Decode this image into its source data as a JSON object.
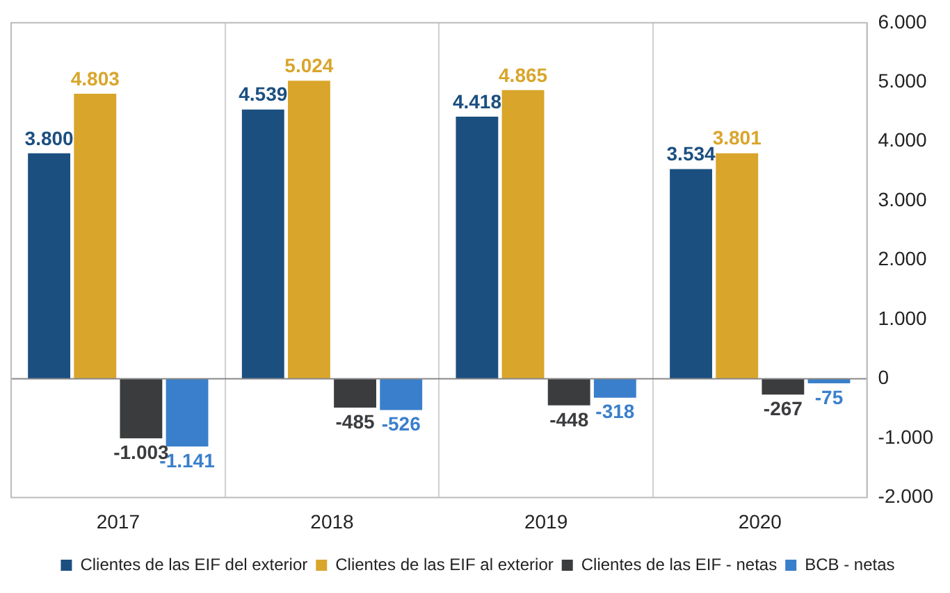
{
  "chart_data": {
    "type": "bar",
    "categories": [
      "2017",
      "2018",
      "2019",
      "2020"
    ],
    "series": [
      {
        "name": "Clientes de las EIF del exterior",
        "color": "#1b4f80",
        "values": [
          3800,
          4539,
          4418,
          3534
        ],
        "value_labels": [
          "3.800",
          "4.539",
          "4.418",
          "3.534"
        ]
      },
      {
        "name": "Clientes de las EIF al exterior",
        "color": "#d9a52b",
        "values": [
          4803,
          5024,
          4865,
          3801
        ],
        "value_labels": [
          "4.803",
          "5.024",
          "4.865",
          "3.801"
        ]
      },
      {
        "name": "Clientes de las EIF - netas",
        "color": "#3b3c3e",
        "values": [
          -1003,
          -485,
          -448,
          -267
        ],
        "value_labels": [
          "-1.003",
          "-485",
          "-448",
          "-267"
        ]
      },
      {
        "name": "BCB - netas",
        "color": "#3a7fcb",
        "values": [
          -1141,
          -526,
          -318,
          -75
        ],
        "value_labels": [
          "-1.141",
          "-526",
          "-318",
          "-75"
        ]
      }
    ],
    "ylim": [
      -2000,
      6000
    ],
    "yticks": [
      {
        "value": -2000,
        "label": "-2.000"
      },
      {
        "value": -1000,
        "label": "-1.000"
      },
      {
        "value": 0,
        "label": "0"
      },
      {
        "value": 1000,
        "label": "1.000"
      },
      {
        "value": 2000,
        "label": "2.000"
      },
      {
        "value": 3000,
        "label": "3.000"
      },
      {
        "value": 4000,
        "label": "4.000"
      },
      {
        "value": 5000,
        "label": "5.000"
      },
      {
        "value": 6000,
        "label": "6.000"
      }
    ],
    "grid": "x",
    "legend": "bottom"
  }
}
